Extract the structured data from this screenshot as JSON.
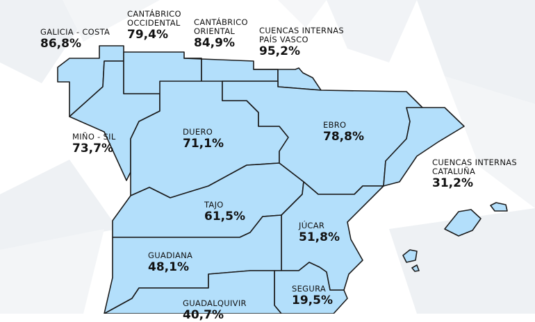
{
  "colors": {
    "background": "#ffffff",
    "background_shapes": "#eef1f4",
    "region_fill": "#b3dffb",
    "region_stroke": "#1a1a1a",
    "text": "#111111"
  },
  "basins": [
    {
      "id": "galicia-costa",
      "name": "GALICIA - COSTA",
      "value": "86,8%"
    },
    {
      "id": "cantabrico-occidental",
      "name": "CANTÁBRICO\nOCCIDENTAL",
      "value": "79,4%"
    },
    {
      "id": "cantabrico-oriental",
      "name": "CANTÁBRICO\nORIENTAL",
      "value": "84,9%"
    },
    {
      "id": "cuencas-internas-pais-vasco",
      "name": "CUENCAS INTERNAS\nPAÍS VASCO",
      "value": "95,2%"
    },
    {
      "id": "mino-sil",
      "name": "MIÑO - SIL",
      "value": "73,7%"
    },
    {
      "id": "duero",
      "name": "DUERO",
      "value": "71,1%"
    },
    {
      "id": "ebro",
      "name": "EBRO",
      "value": "78,8%"
    },
    {
      "id": "cuencas-internas-cataluna",
      "name": "CUENCAS INTERNAS\nCATALUÑA",
      "value": "31,2%"
    },
    {
      "id": "tajo",
      "name": "TAJO",
      "value": "61,5%"
    },
    {
      "id": "jucar",
      "name": "JÚCAR",
      "value": "51,8%"
    },
    {
      "id": "guadiana",
      "name": "GUADIANA",
      "value": "48,1%"
    },
    {
      "id": "segura",
      "name": "SEGURA",
      "value": "19,5%"
    },
    {
      "id": "guadalquivir",
      "name": "GUADALQUIVIR",
      "value": "40,7%"
    }
  ]
}
